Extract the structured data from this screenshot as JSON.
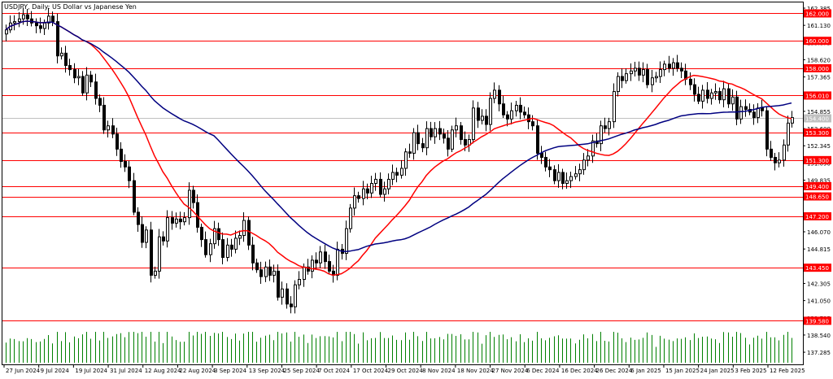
{
  "window": {
    "title": "USDJPY, Daily:  US Dollar vs Japanese Yen"
  },
  "colors": {
    "background": "#ffffff",
    "frame": "#000000",
    "candle_up_body": "#ffffff",
    "candle_down_body": "#000000",
    "candle_outline": "#000000",
    "ma_fast": "#ff0000",
    "ma_slow": "#000080",
    "hline": "#ff0000",
    "hline_label_bg": "#ff0000",
    "hline_label_text": "#ffffff",
    "volume": "#008000",
    "current_price_line": "#c0c0c0"
  },
  "chart_data": {
    "type": "candlestick",
    "symbol": "USDJPY",
    "timeframe": "Daily",
    "title": "USDJPY, Daily:  US Dollar vs Japanese Yen",
    "ylim": [
      136.4,
      162.8
    ],
    "y_ticks": [
      "162.385",
      "161.130",
      "159.875",
      "158.620",
      "157.365",
      "156.110",
      "154.855",
      "153.600",
      "152.345",
      "151.090",
      "149.835",
      "148.580",
      "147.325",
      "146.070",
      "144.815",
      "143.560",
      "142.305",
      "141.050",
      "139.795",
      "138.540",
      "137.285"
    ],
    "x_labels": [
      "27 Jun 2024",
      "9 Jul 2024",
      "19 Jul 2024",
      "31 Jul 2024",
      "12 Aug 2024",
      "22 Aug 2024",
      "3 Sep 2024",
      "13 Sep 2024",
      "25 Sep 2024",
      "7 Oct 2024",
      "17 Oct 2024",
      "29 Oct 2024",
      "8 Nov 2024",
      "18 Nov 2024",
      "27 Nov 2024",
      "6 Dec 2024",
      "16 Dec 2024",
      "26 Dec 2024",
      "6 Jan 2025",
      "15 Jan 2025",
      "24 Jan 2025",
      "3 Feb 2025",
      "12 Feb 2025"
    ],
    "horizontal_levels": [
      {
        "value": 162.0,
        "label": "162.000"
      },
      {
        "value": 160.0,
        "label": "160.000"
      },
      {
        "value": 158.0,
        "label": "158.000"
      },
      {
        "value": 156.01,
        "label": "156.010"
      },
      {
        "value": 153.3,
        "label": "153.300"
      },
      {
        "value": 151.3,
        "label": "151.300"
      },
      {
        "value": 149.4,
        "label": "149.400"
      },
      {
        "value": 148.65,
        "label": "148.650"
      },
      {
        "value": 147.2,
        "label": "147.200"
      },
      {
        "value": 143.45,
        "label": "143.450"
      },
      {
        "value": 139.58,
        "label": "139.580"
      }
    ],
    "current_price": {
      "value": 154.4,
      "label": "154.400"
    },
    "closes": [
      160.8,
      161.3,
      161.4,
      161.6,
      161.9,
      161.6,
      161.3,
      161.1,
      160.9,
      161.3,
      161.8,
      161.4,
      158.9,
      159.1,
      158.2,
      157.9,
      157.3,
      157.4,
      156.2,
      157.5,
      157.0,
      155.8,
      155.3,
      153.5,
      153.8,
      153.2,
      152.1,
      151.2,
      150.8,
      149.8,
      147.5,
      146.6,
      145.3,
      146.2,
      142.9,
      143.2,
      145.7,
      145.4,
      147.1,
      146.7,
      147.0,
      146.8,
      147.1,
      149.1,
      148.2,
      146.4,
      145.5,
      144.4,
      145.2,
      146.3,
      145.5,
      144.2,
      145.1,
      144.8,
      145.6,
      145.8,
      146.9,
      145.1,
      143.8,
      143.3,
      142.8,
      143.5,
      142.9,
      143.2,
      141.3,
      141.9,
      140.8,
      140.6,
      142.2,
      142.6,
      143.5,
      143.2,
      144.0,
      143.8,
      144.6,
      143.9,
      143.2,
      142.9,
      144.8,
      144.5,
      146.3,
      147.8,
      148.7,
      148.5,
      149.2,
      148.9,
      149.6,
      149.9,
      148.8,
      149.2,
      149.9,
      150.4,
      150.2,
      150.7,
      151.9,
      151.8,
      153.3,
      152.5,
      152.2,
      153.6,
      153.0,
      153.6,
      153.2,
      152.9,
      152.1,
      153.5,
      153.8,
      152.8,
      152.4,
      152.8,
      155.1,
      154.2,
      154.5,
      153.9,
      155.8,
      156.4,
      155.4,
      154.6,
      154.3,
      154.9,
      155.3,
      154.8,
      154.6,
      154.1,
      153.8,
      151.8,
      151.5,
      150.8,
      150.6,
      149.8,
      150.4,
      149.6,
      149.8,
      150.1,
      150.3,
      150.6,
      151.3,
      151.6,
      152.7,
      152.5,
      153.8,
      153.6,
      154.1,
      156.3,
      157.4,
      157.1,
      157.6,
      157.8,
      158.0,
      157.5,
      157.9,
      156.8,
      157.3,
      157.4,
      157.9,
      158.3,
      158.0,
      158.4,
      158.0,
      157.8,
      157.2,
      156.8,
      156.1,
      155.6,
      156.4,
      155.8,
      156.2,
      156.3,
      155.7,
      156.5,
      155.4,
      155.9,
      154.3,
      155.2,
      155.0,
      154.8,
      154.4,
      155.1,
      154.9,
      152.1,
      151.5,
      151.1,
      151.3,
      152.4,
      154.0,
      154.4
    ]
  }
}
